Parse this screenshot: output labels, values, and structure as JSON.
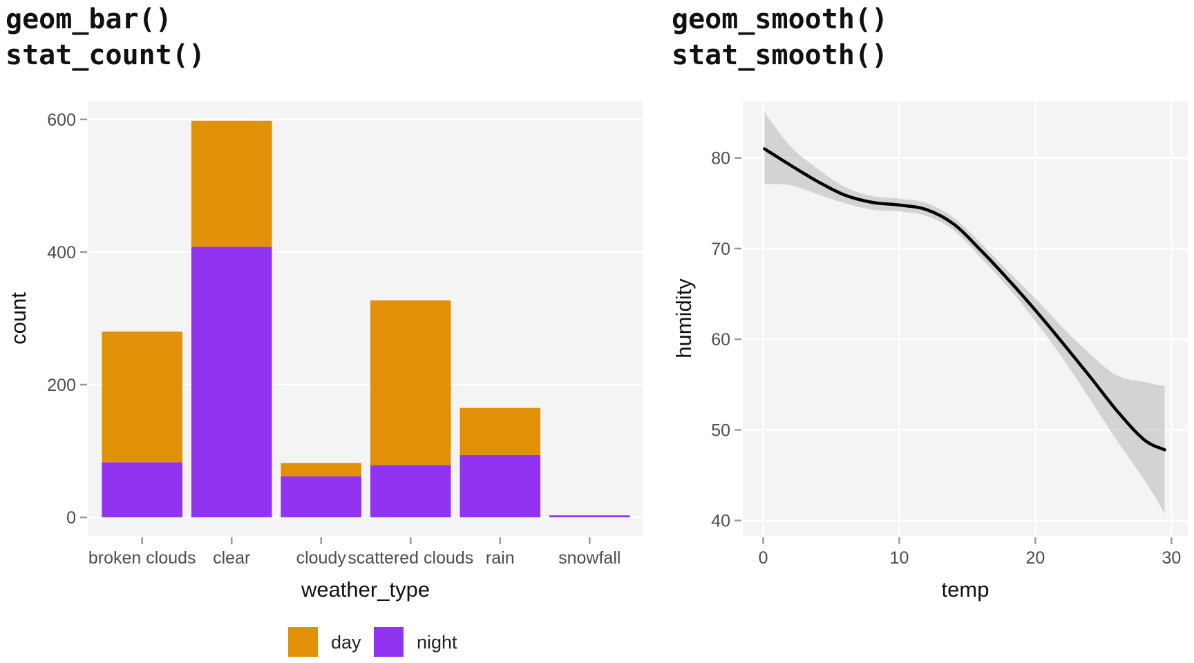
{
  "chart_data": [
    {
      "type": "bar",
      "title_lines": [
        "geom_bar()",
        "stat_count()"
      ],
      "xlabel": "weather_type",
      "ylabel": "count",
      "categories": [
        "broken clouds",
        "clear",
        "cloudy",
        "scattered clouds",
        "rain",
        "snowfall"
      ],
      "series": [
        {
          "name": "night",
          "color": "#9333F2",
          "values": [
            83,
            408,
            62,
            79,
            94,
            3
          ]
        },
        {
          "name": "day",
          "color": "#E19108",
          "values": [
            197,
            190,
            20,
            248,
            71,
            0
          ]
        }
      ],
      "stacked": true,
      "ylim": [
        -28,
        628
      ],
      "yticks": [
        0,
        200,
        400,
        600
      ],
      "grid": true,
      "legend": {
        "position": "bottom",
        "entries": [
          "day",
          "night"
        ]
      }
    },
    {
      "type": "line",
      "title_lines": [
        "geom_smooth()",
        "stat_smooth()"
      ],
      "xlabel": "temp",
      "ylabel": "humidity",
      "xlim": [
        -1.5,
        31.2
      ],
      "ylim": [
        38.3,
        86.3
      ],
      "xticks": [
        0,
        10,
        20,
        30
      ],
      "yticks": [
        40,
        50,
        60,
        70,
        80
      ],
      "grid": true,
      "line_color": "#000000",
      "ribbon_color": "#BDBDBD",
      "x": [
        0.1,
        2,
        4,
        6,
        8,
        10,
        12,
        14,
        16,
        18,
        20,
        22,
        24,
        26,
        28,
        29.5
      ],
      "y": [
        81.0,
        79.2,
        77.4,
        75.9,
        75.1,
        74.8,
        74.3,
        72.7,
        69.8,
        66.6,
        63.2,
        59.6,
        55.9,
        52.1,
        48.9,
        47.8
      ],
      "ymin": [
        77.1,
        77.0,
        76.0,
        75.0,
        74.3,
        74.1,
        73.6,
        72.0,
        69.0,
        65.7,
        62.0,
        57.9,
        53.4,
        48.8,
        44.5,
        40.8
      ],
      "ymax": [
        85.0,
        81.3,
        78.8,
        76.8,
        75.8,
        75.5,
        75.0,
        73.4,
        70.6,
        67.5,
        64.5,
        61.3,
        58.4,
        56.0,
        55.3,
        54.8
      ]
    }
  ]
}
